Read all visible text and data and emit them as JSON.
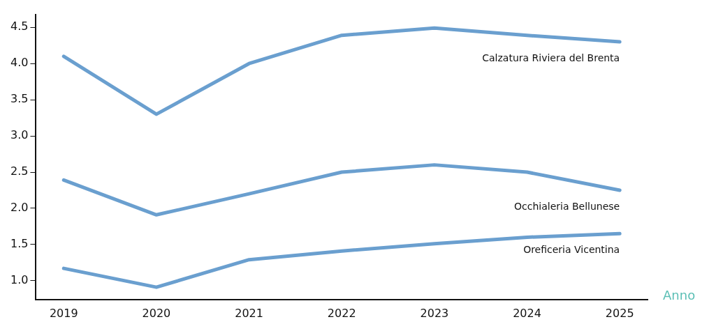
{
  "chart_data": {
    "type": "line",
    "xlabel": "Anno",
    "x": [
      2019,
      2020,
      2021,
      2022,
      2023,
      2024,
      2025
    ],
    "xlim": [
      2018.7,
      2025.3
    ],
    "xticks": [
      2019,
      2020,
      2021,
      2022,
      2023,
      2024,
      2025
    ],
    "ylim": [
      0.74,
      4.68
    ],
    "yticks": [
      {
        "value": 1,
        "label": "1.0"
      },
      {
        "value": 1.5,
        "label": "1.5"
      },
      {
        "value": 2,
        "label": "2.0"
      },
      {
        "value": 2.5,
        "label": "2.5"
      },
      {
        "value": 3,
        "label": "3.0"
      },
      {
        "value": 3.5,
        "label": "3.5"
      },
      {
        "value": 4,
        "label": "4.0"
      },
      {
        "value": 4.5,
        "label": "4.5"
      }
    ],
    "grid": false,
    "legend": false,
    "marker": "none",
    "line_style": "solid",
    "series": [
      {
        "name": "Calzatura Riviera del Brenta",
        "color": "#6a9fcf",
        "values": [
          4.1,
          3.3,
          4.0,
          4.39,
          4.49,
          4.39,
          4.3
        ]
      },
      {
        "name": "Occhialeria Bellunese",
        "color": "#6a9fcf",
        "values": [
          2.39,
          1.91,
          2.2,
          2.5,
          2.6,
          2.5,
          2.25
        ]
      },
      {
        "name": "Oreficeria Vicentina",
        "color": "#6a9fcf",
        "values": [
          1.17,
          0.91,
          1.29,
          1.41,
          1.51,
          1.6,
          1.65
        ]
      }
    ]
  }
}
